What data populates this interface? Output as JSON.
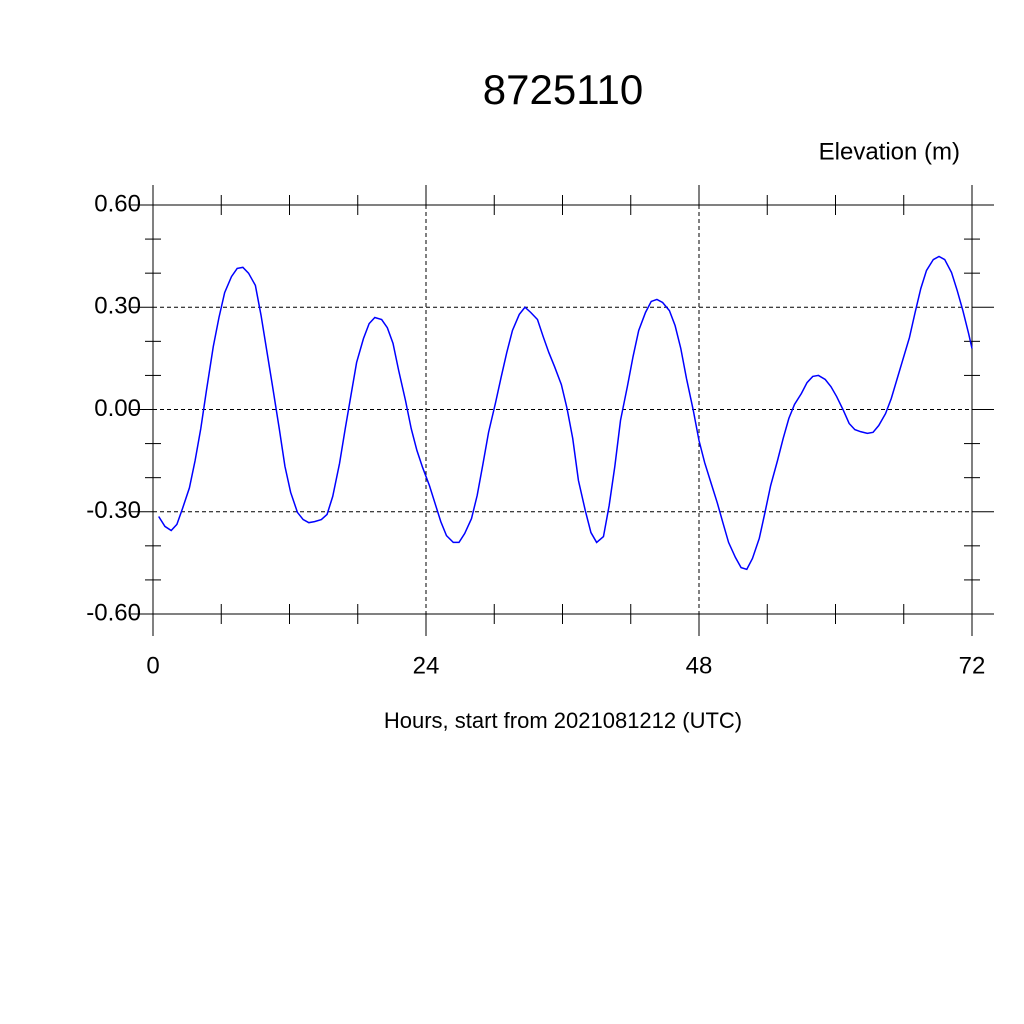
{
  "chart_data": {
    "type": "line",
    "title": "8725110",
    "ylabel": "Elevation (m)",
    "xlabel": "Hours, start from 2021081212 (UTC)",
    "xlim": [
      0,
      72
    ],
    "xticks": [
      0,
      24,
      48,
      72
    ],
    "xminorticks": [
      6,
      12,
      18,
      30,
      36,
      42,
      54,
      60,
      66
    ],
    "ylim": [
      -0.6,
      0.6
    ],
    "yticks": [
      {
        "value": -0.6,
        "label": "-0.60"
      },
      {
        "value": -0.3,
        "label": "-0.30"
      },
      {
        "value": 0,
        "label": "0.00"
      },
      {
        "value": 0.3,
        "label": "0.30"
      },
      {
        "value": 0.6,
        "label": "0.60"
      }
    ],
    "yminorticks": [
      -0.5,
      -0.4,
      -0.2,
      -0.1,
      0.1,
      0.2,
      0.4,
      0.5
    ],
    "grid": true,
    "series": [
      {
        "color": "#0000ff",
        "x": [
          0.5,
          1.05,
          1.6,
          2.1,
          2.6,
          3.2,
          3.7,
          4.2,
          4.7,
          5.3,
          5.8,
          6.3,
          6.9,
          7.4,
          7.9,
          8.4,
          9.0,
          9.5,
          10.0,
          10.5,
          11.1,
          11.6,
          12.1,
          12.7,
          13.2,
          13.7,
          14.2,
          14.8,
          15.3,
          15.8,
          16.4,
          16.9,
          17.4,
          17.9,
          18.5,
          19.0,
          19.5,
          20.1,
          20.6,
          21.1,
          21.6,
          22.2,
          22.7,
          23.2,
          23.7,
          24.3,
          24.8,
          25.3,
          25.8,
          26.4,
          26.9,
          27.4,
          28.0,
          28.5,
          29.0,
          29.5,
          30.1,
          30.6,
          31.1,
          31.6,
          32.2,
          32.7,
          33.2,
          33.8,
          34.3,
          34.8,
          35.3,
          35.9,
          36.4,
          36.9,
          37.4,
          38.0,
          38.5,
          39.0,
          39.6,
          40.1,
          40.6,
          41.1,
          41.7,
          42.2,
          42.7,
          43.3,
          43.8,
          44.3,
          44.8,
          45.4,
          45.9,
          46.4,
          46.9,
          47.5,
          48.0,
          48.5,
          49.1,
          49.6,
          50.1,
          50.6,
          51.2,
          51.7,
          52.2,
          52.7,
          53.3,
          53.8,
          54.3,
          54.9,
          55.4,
          55.9,
          56.4,
          57.0,
          57.5,
          58.0,
          58.5,
          59.1,
          59.6,
          60.1,
          60.7,
          61.2,
          61.7,
          62.2,
          62.8,
          63.3,
          63.8,
          64.4,
          64.9,
          65.4,
          65.9,
          66.5,
          67.0,
          67.5,
          68.0,
          68.6,
          69.1,
          69.6,
          70.2,
          70.7,
          71.2,
          71.7,
          72
        ],
        "values": [
          -0.314,
          -0.343,
          -0.355,
          -0.337,
          -0.29,
          -0.23,
          -0.15,
          -0.056,
          0.056,
          0.185,
          0.27,
          0.343,
          0.39,
          0.414,
          0.417,
          0.4,
          0.364,
          0.276,
          0.173,
          0.07,
          -0.056,
          -0.167,
          -0.243,
          -0.302,
          -0.323,
          -0.332,
          -0.329,
          -0.323,
          -0.308,
          -0.255,
          -0.158,
          -0.056,
          0.041,
          0.138,
          0.208,
          0.252,
          0.27,
          0.264,
          0.24,
          0.194,
          0.114,
          0.026,
          -0.056,
          -0.12,
          -0.17,
          -0.223,
          -0.276,
          -0.329,
          -0.37,
          -0.39,
          -0.39,
          -0.364,
          -0.32,
          -0.252,
          -0.161,
          -0.067,
          0.018,
          0.094,
          0.167,
          0.232,
          0.279,
          0.3,
          0.285,
          0.264,
          0.214,
          0.167,
          0.126,
          0.073,
          0.003,
          -0.085,
          -0.208,
          -0.296,
          -0.361,
          -0.39,
          -0.373,
          -0.282,
          -0.167,
          -0.032,
          0.067,
          0.155,
          0.232,
          0.285,
          0.317,
          0.323,
          0.314,
          0.29,
          0.246,
          0.179,
          0.091,
          -0.003,
          -0.091,
          -0.156,
          -0.22,
          -0.273,
          -0.332,
          -0.39,
          -0.434,
          -0.464,
          -0.469,
          -0.437,
          -0.378,
          -0.302,
          -0.223,
          -0.15,
          -0.085,
          -0.026,
          0.015,
          0.047,
          0.079,
          0.097,
          0.1,
          0.088,
          0.067,
          0.038,
          -0.003,
          -0.041,
          -0.059,
          -0.065,
          -0.07,
          -0.067,
          -0.047,
          -0.012,
          0.032,
          0.088,
          0.144,
          0.211,
          0.285,
          0.355,
          0.408,
          0.44,
          0.449,
          0.44,
          0.402,
          0.349,
          0.29,
          0.223,
          0.179
        ]
      }
    ]
  }
}
